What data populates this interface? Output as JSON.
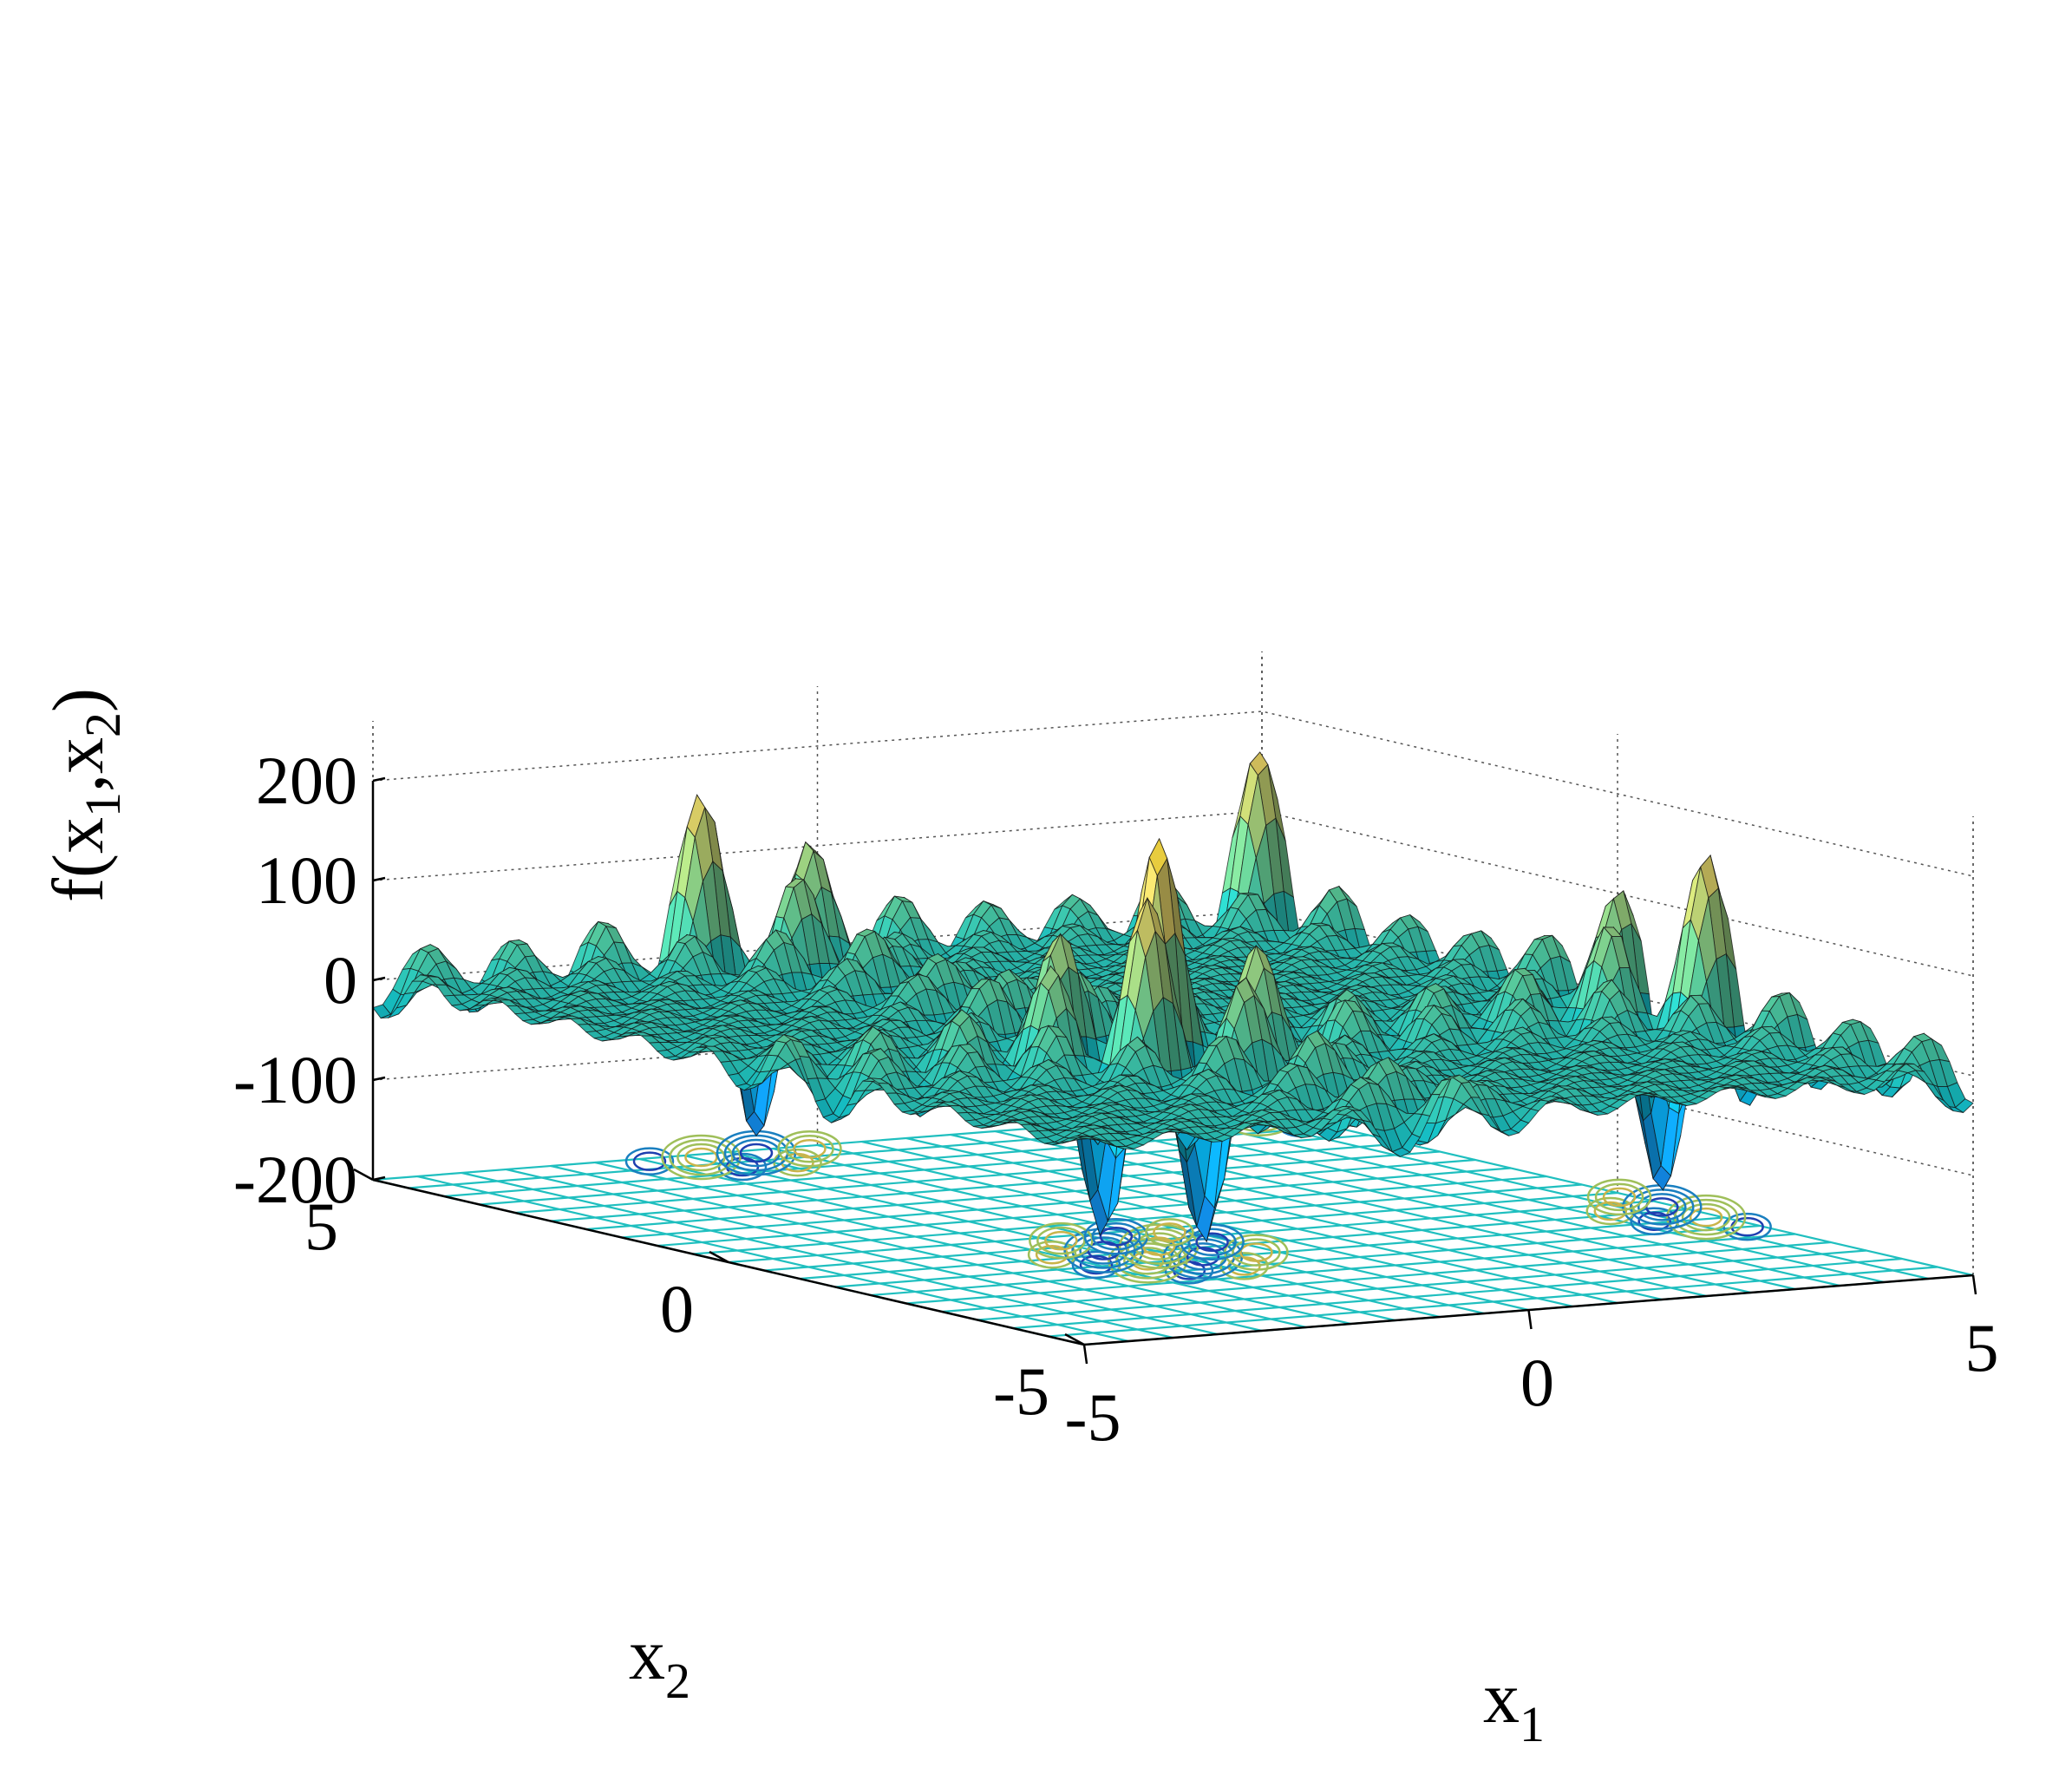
{
  "chart_data": {
    "type": "surface",
    "surface_function": "shubert",
    "x1": {
      "label": "x",
      "subscript": "1",
      "lim": [
        -5,
        5
      ],
      "ticks": [
        -5,
        0,
        5
      ],
      "tick_labels": [
        "-5",
        "0",
        "5"
      ]
    },
    "x2": {
      "label": "x",
      "subscript": "2",
      "lim": [
        -5,
        5
      ],
      "ticks": [
        -5,
        0,
        5
      ],
      "tick_labels": [
        "-5",
        "0",
        "5"
      ]
    },
    "z": {
      "label_parts": [
        "f(x",
        "1",
        ",x",
        "2",
        ")"
      ],
      "lim": [
        -200,
        200
      ],
      "ticks": [
        200,
        100,
        0,
        -100,
        -200
      ],
      "tick_labels": [
        "200",
        "100",
        "0",
        "-100",
        "-200"
      ]
    },
    "grid": true,
    "contour_on_floor": true,
    "colormap": "parula",
    "mesh_edge_color": "#000000",
    "floor_grid_color": "#1fbfbf",
    "peak_value_approx": 210,
    "min_value_approx": -186
  }
}
